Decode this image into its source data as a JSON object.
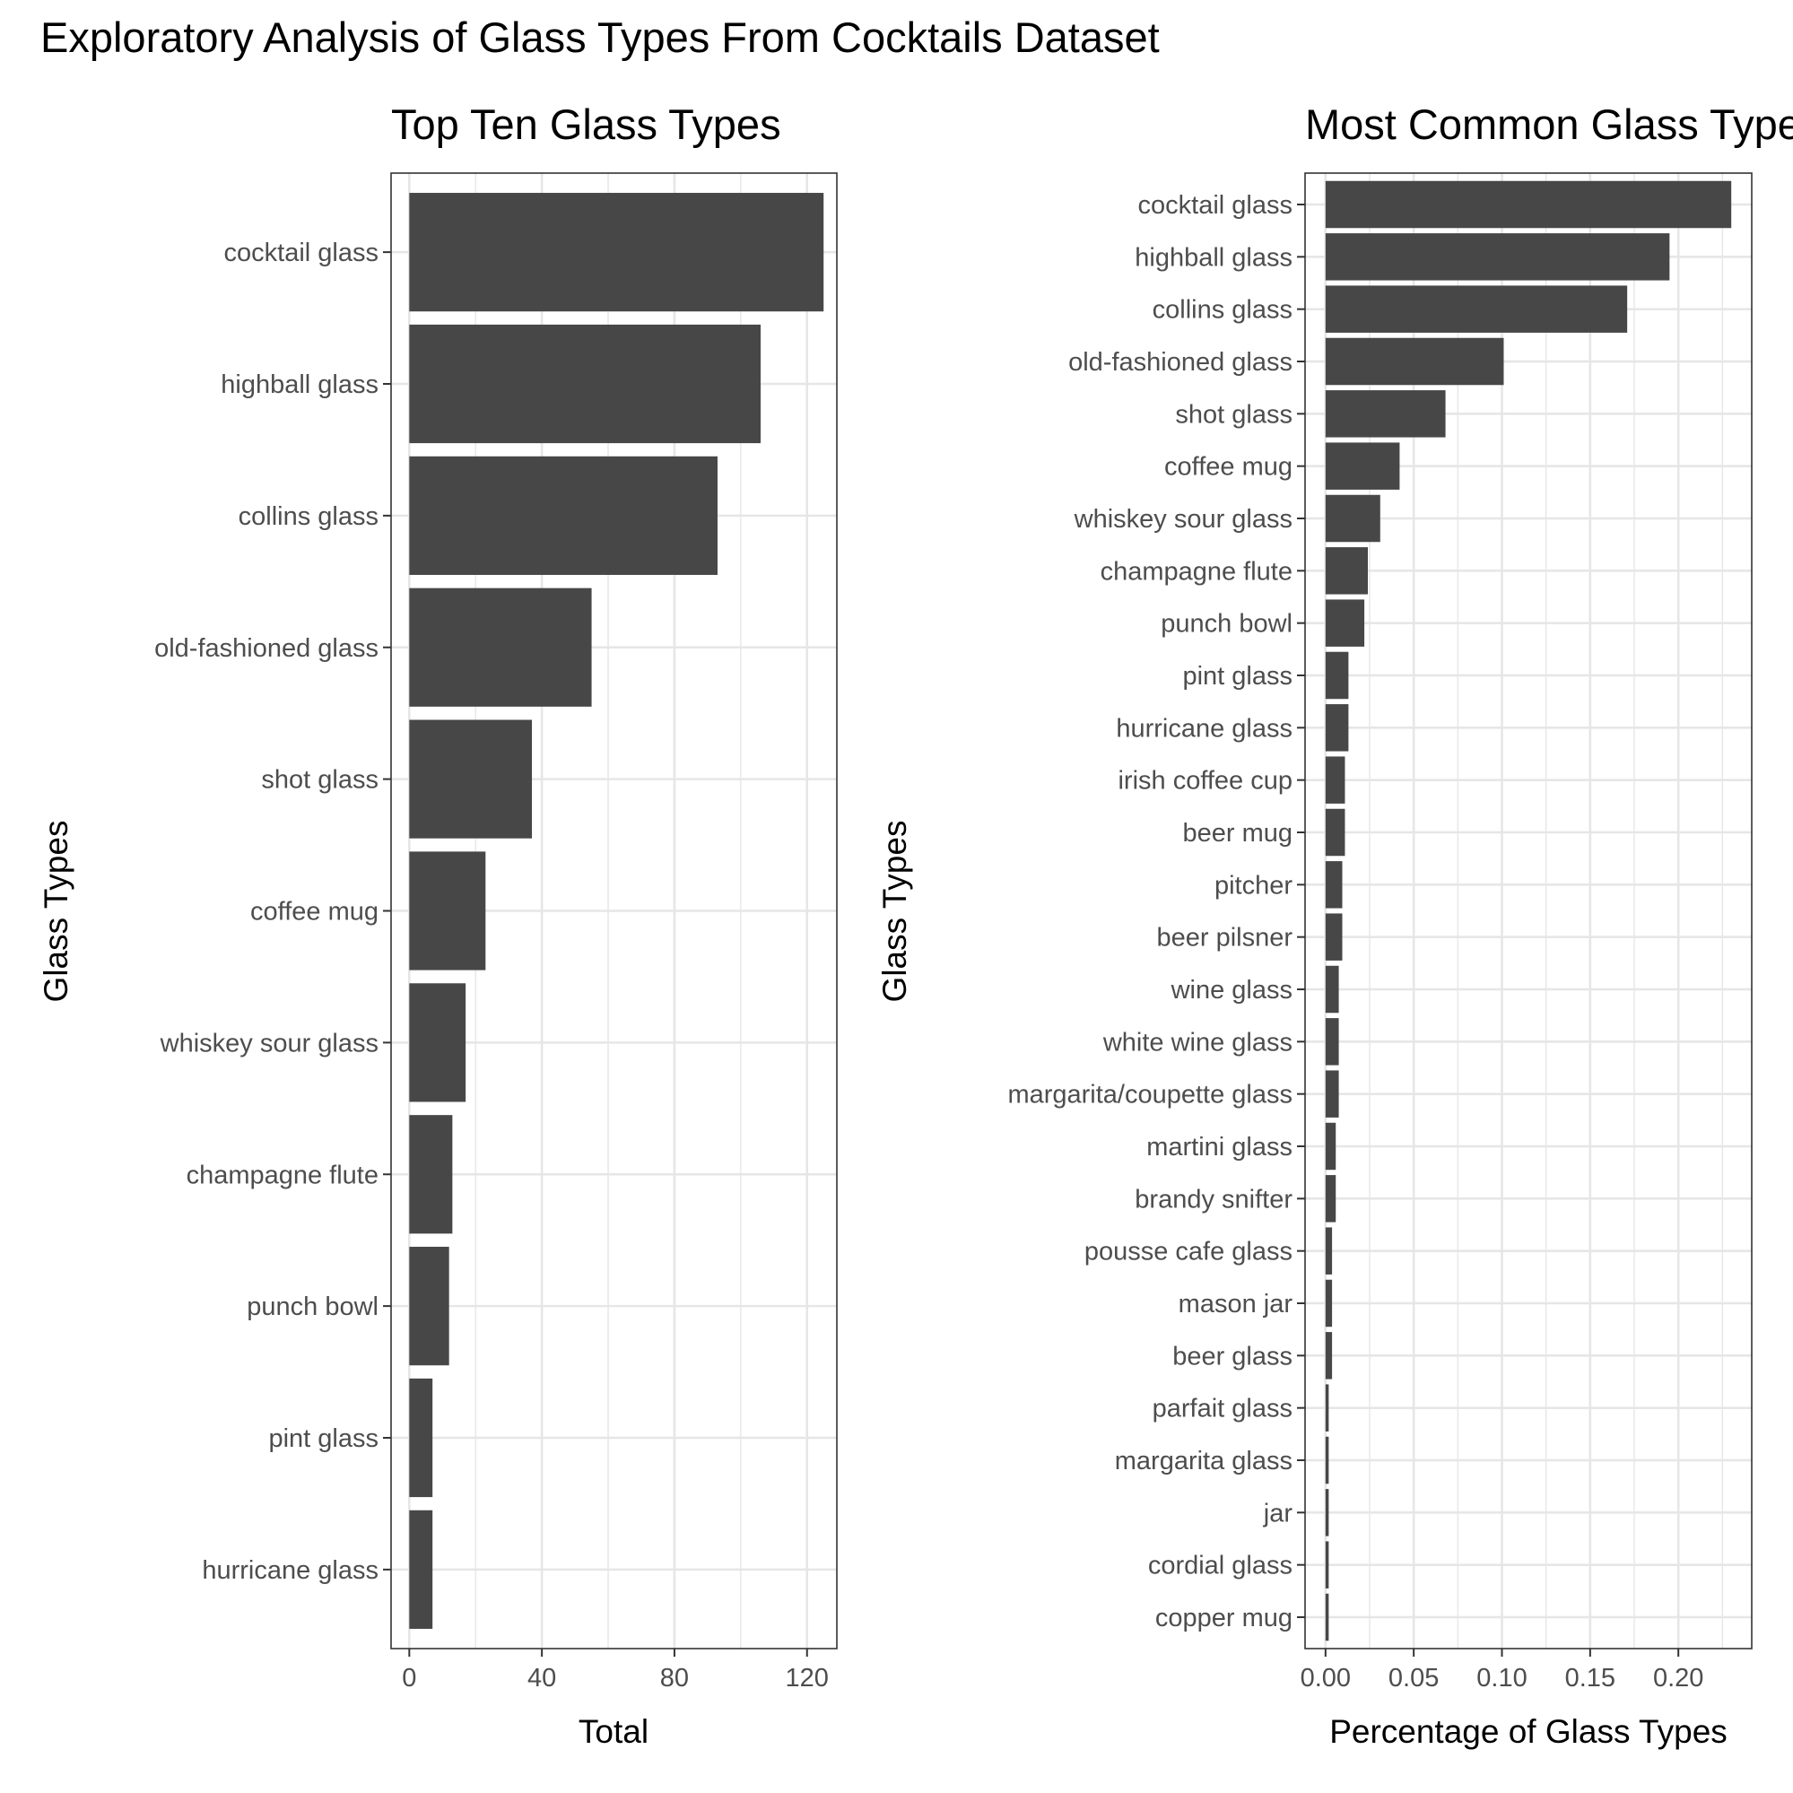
{
  "title": "Exploratory Analysis of Glass Types From Cocktails Dataset",
  "colors": {
    "bar": "#474747",
    "grid": "#e6e6e6",
    "panel_border": "#333333",
    "tick": "#333333",
    "background": "#ffffff"
  },
  "chart_data": [
    {
      "type": "bar",
      "orientation": "horizontal",
      "title": "Top Ten Glass Types",
      "xlabel": "Total",
      "ylabel": "Glass Types",
      "xlim": [
        -5.5,
        129
      ],
      "xticks": [
        0,
        40,
        80,
        120
      ],
      "xtick_labels": [
        "0",
        "40",
        "80",
        "120"
      ],
      "grid": true,
      "categories": [
        "cocktail glass",
        "highball glass",
        "collins glass",
        "old-fashioned glass",
        "shot glass",
        "coffee mug",
        "whiskey sour glass",
        "champagne flute",
        "punch bowl",
        "pint glass",
        "hurricane glass"
      ],
      "values": [
        125,
        106,
        93,
        55,
        37,
        23,
        17,
        13,
        12,
        7,
        7
      ]
    },
    {
      "type": "bar",
      "orientation": "horizontal",
      "title": "Most Common Glass Types",
      "xlabel": "Percentage of Glass Types",
      "ylabel": "Glass Types",
      "xlim": [
        -0.0116,
        0.2416
      ],
      "xticks": [
        0.0,
        0.05,
        0.1,
        0.15,
        0.2
      ],
      "xtick_labels": [
        "0.00",
        "0.05",
        "0.10",
        "0.15",
        "0.20"
      ],
      "grid": true,
      "categories": [
        "cocktail glass",
        "highball glass",
        "collins glass",
        "old-fashioned glass",
        "shot glass",
        "coffee mug",
        "whiskey sour glass",
        "champagne flute",
        "punch bowl",
        "pint glass",
        "hurricane glass",
        "irish coffee cup",
        "beer mug",
        "pitcher",
        "beer pilsner",
        "wine glass",
        "white wine glass",
        "margarita/coupette glass",
        "martini glass",
        "brandy snifter",
        "pousse cafe glass",
        "mason jar",
        "beer glass",
        "parfait glass",
        "margarita glass",
        "jar",
        "cordial glass",
        "copper mug"
      ],
      "values": [
        0.23,
        0.195,
        0.171,
        0.101,
        0.068,
        0.042,
        0.031,
        0.024,
        0.022,
        0.013,
        0.013,
        0.011,
        0.011,
        0.0095,
        0.0095,
        0.0075,
        0.0075,
        0.0075,
        0.0058,
        0.0058,
        0.0037,
        0.0037,
        0.0037,
        0.0018,
        0.0018,
        0.0018,
        0.0018,
        0.0018
      ]
    }
  ]
}
